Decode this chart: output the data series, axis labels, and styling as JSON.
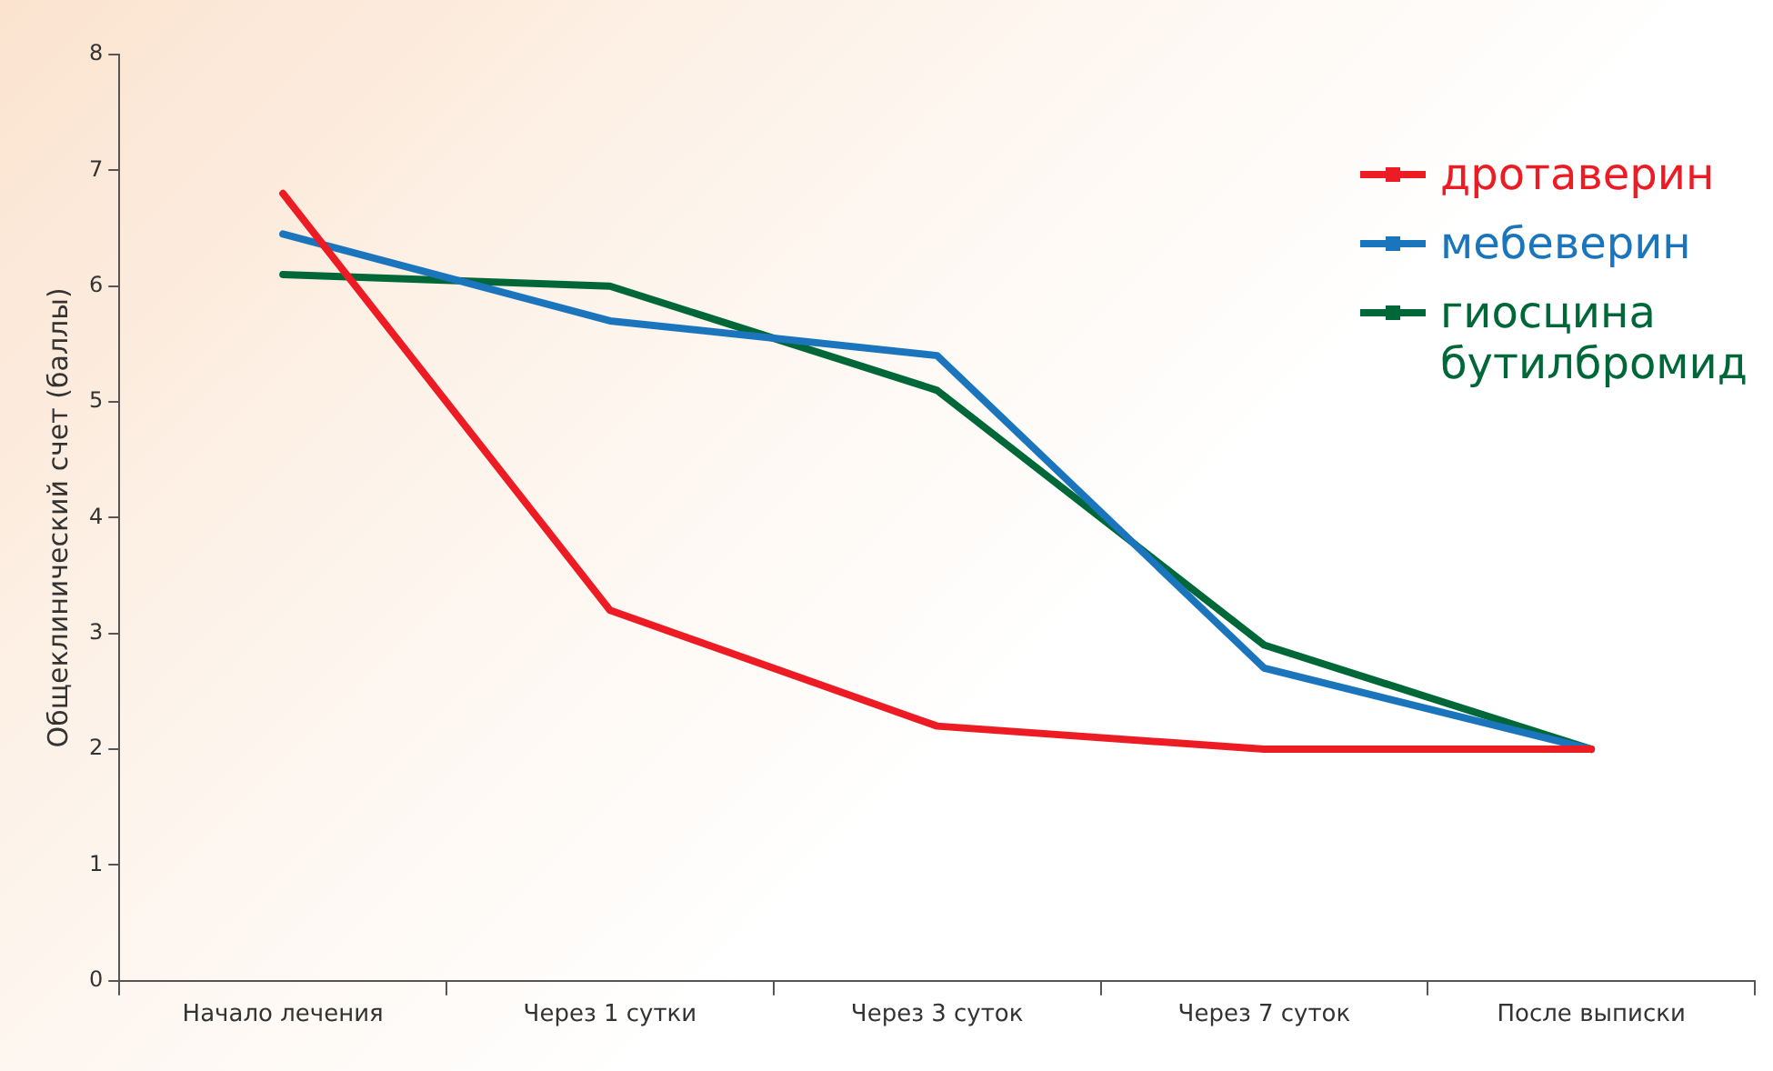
{
  "chart_data": {
    "type": "line",
    "ylabel": "Общеклинический счет (баллы)",
    "categories": [
      "Начало лечения",
      "Через 1 сутки",
      "Через 3 суток",
      "Через 7 суток",
      "После выписки"
    ],
    "series": [
      {
        "name": "дротаверин",
        "color": "#ed1c24",
        "values": [
          6.8,
          3.2,
          2.2,
          2.0,
          2.0
        ]
      },
      {
        "name": "мебеверин",
        "color": "#1b75bc",
        "values": [
          6.45,
          5.7,
          5.4,
          2.7,
          2.0
        ]
      },
      {
        "name": "гиосцина бутилбромид",
        "color": "#006838",
        "values": [
          6.1,
          6.0,
          5.1,
          2.9,
          2.0
        ]
      }
    ],
    "ylim": [
      0,
      8
    ],
    "yticks": [
      0,
      1,
      2,
      3,
      4,
      5,
      6,
      7,
      8
    ],
    "grid": false,
    "legend": "top right",
    "marker": "none",
    "line_style": "solid"
  }
}
